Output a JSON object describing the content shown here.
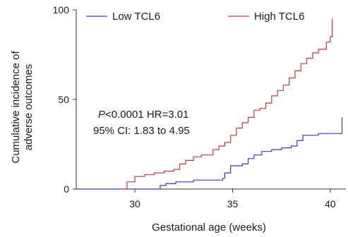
{
  "chart_data": {
    "type": "line",
    "xlabel": "Gestational age (weeks)",
    "ylabel_lines": [
      "Cumulative incidence of",
      "adverse outcomes"
    ],
    "xlim": [
      27,
      40.8
    ],
    "ylim": [
      0,
      100
    ],
    "xticks": [
      30,
      35,
      40
    ],
    "yticks": [
      0,
      50,
      100
    ],
    "grid": false,
    "legend_position": "top",
    "annotation": {
      "p_prefix": "P",
      "line1_rest": "<0.0001 HR=3.01",
      "line2": "95% CI: 1.83 to 4.95"
    },
    "series": [
      {
        "name": "Low TCL6",
        "color": "#3a3ab8",
        "x": [
          27,
          31.0,
          31.3,
          31.6,
          32.1,
          33.0,
          34.5,
          34.6,
          34.9,
          35.5,
          35.8,
          36.1,
          36.5,
          37.0,
          37.5,
          38.0,
          38.3,
          38.6,
          39.4,
          40.6
        ],
        "y": [
          0,
          0,
          2,
          3,
          4,
          5,
          6,
          9,
          13,
          14,
          17,
          19,
          21,
          22,
          23,
          24,
          27,
          30,
          31,
          40
        ]
      },
      {
        "name": "High TCL6",
        "color": "#c23b3b",
        "x": [
          29.4,
          29.6,
          30.0,
          30.5,
          31.0,
          31.5,
          32.0,
          32.3,
          32.6,
          33.0,
          33.4,
          34.0,
          34.3,
          34.6,
          34.9,
          35.2,
          35.5,
          35.8,
          36.1,
          36.4,
          36.7,
          37.0,
          37.3,
          37.6,
          37.9,
          38.2,
          38.5,
          38.8,
          39.1,
          39.4,
          39.8,
          40.0,
          40.1
        ],
        "y": [
          0,
          4,
          7,
          8,
          9,
          10,
          11,
          14,
          16,
          18,
          19,
          22,
          24,
          26,
          30,
          34,
          37,
          40,
          44,
          45,
          48,
          52,
          55,
          58,
          62,
          66,
          70,
          73,
          76,
          78,
          82,
          85,
          95
        ]
      }
    ]
  }
}
